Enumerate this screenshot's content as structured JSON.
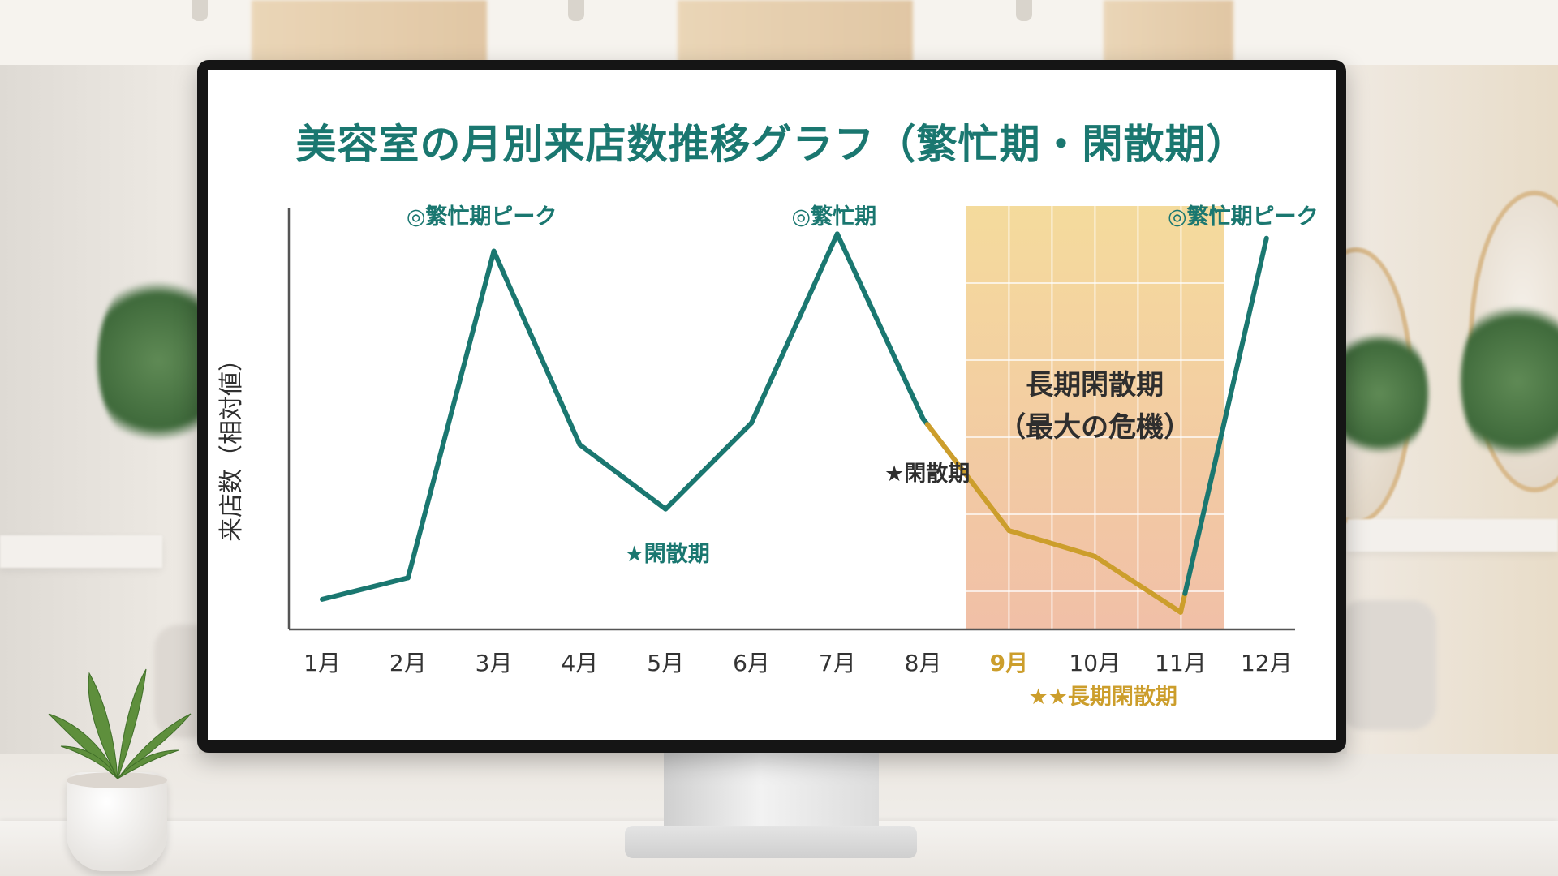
{
  "page": {
    "title": "美容室の月別来店数推移グラフ（繁忙期・閑散期）",
    "colors": {
      "title": "#1a7770",
      "line": "#1a7770",
      "slump": "#cc9e2c",
      "axis": "#555555",
      "shade_top": "#f2d48e",
      "shade_bottom": "#f0b89a"
    }
  },
  "chart_data": {
    "type": "line",
    "title": "美容室の月別来店数推移グラフ（繁忙期・閑散期）",
    "xlabel": "",
    "ylabel": "来店数（相対値）",
    "categories": [
      "1月",
      "2月",
      "3月",
      "4月",
      "5月",
      "6月",
      "7月",
      "8月",
      "9月",
      "10月",
      "11月",
      "12月"
    ],
    "series": [
      {
        "values": [
          7,
          12,
          88,
          43,
          28,
          48,
          92,
          49,
          23,
          17,
          4,
          91
        ]
      }
    ],
    "ylim": [
      0,
      100
    ],
    "grid": false,
    "legend": "none",
    "highlight_categories": [
      "9月",
      "10月",
      "11月"
    ],
    "highlight_color": "#cc9e2c",
    "region": {
      "label_line1": "長期閑散期",
      "label_line2": "（最大の危機）"
    },
    "annotations": [
      {
        "text": "◎繁忙期ピーク",
        "category": "3月"
      },
      {
        "text": "★閑散期",
        "category": "5月"
      },
      {
        "text": "◎繁忙期",
        "category": "7月"
      },
      {
        "text": "★閑散期",
        "category": "8月"
      },
      {
        "text": "◎繁忙期ピーク",
        "category": "12月"
      },
      {
        "text": "★★長期閑散期",
        "category": "10月"
      }
    ]
  }
}
